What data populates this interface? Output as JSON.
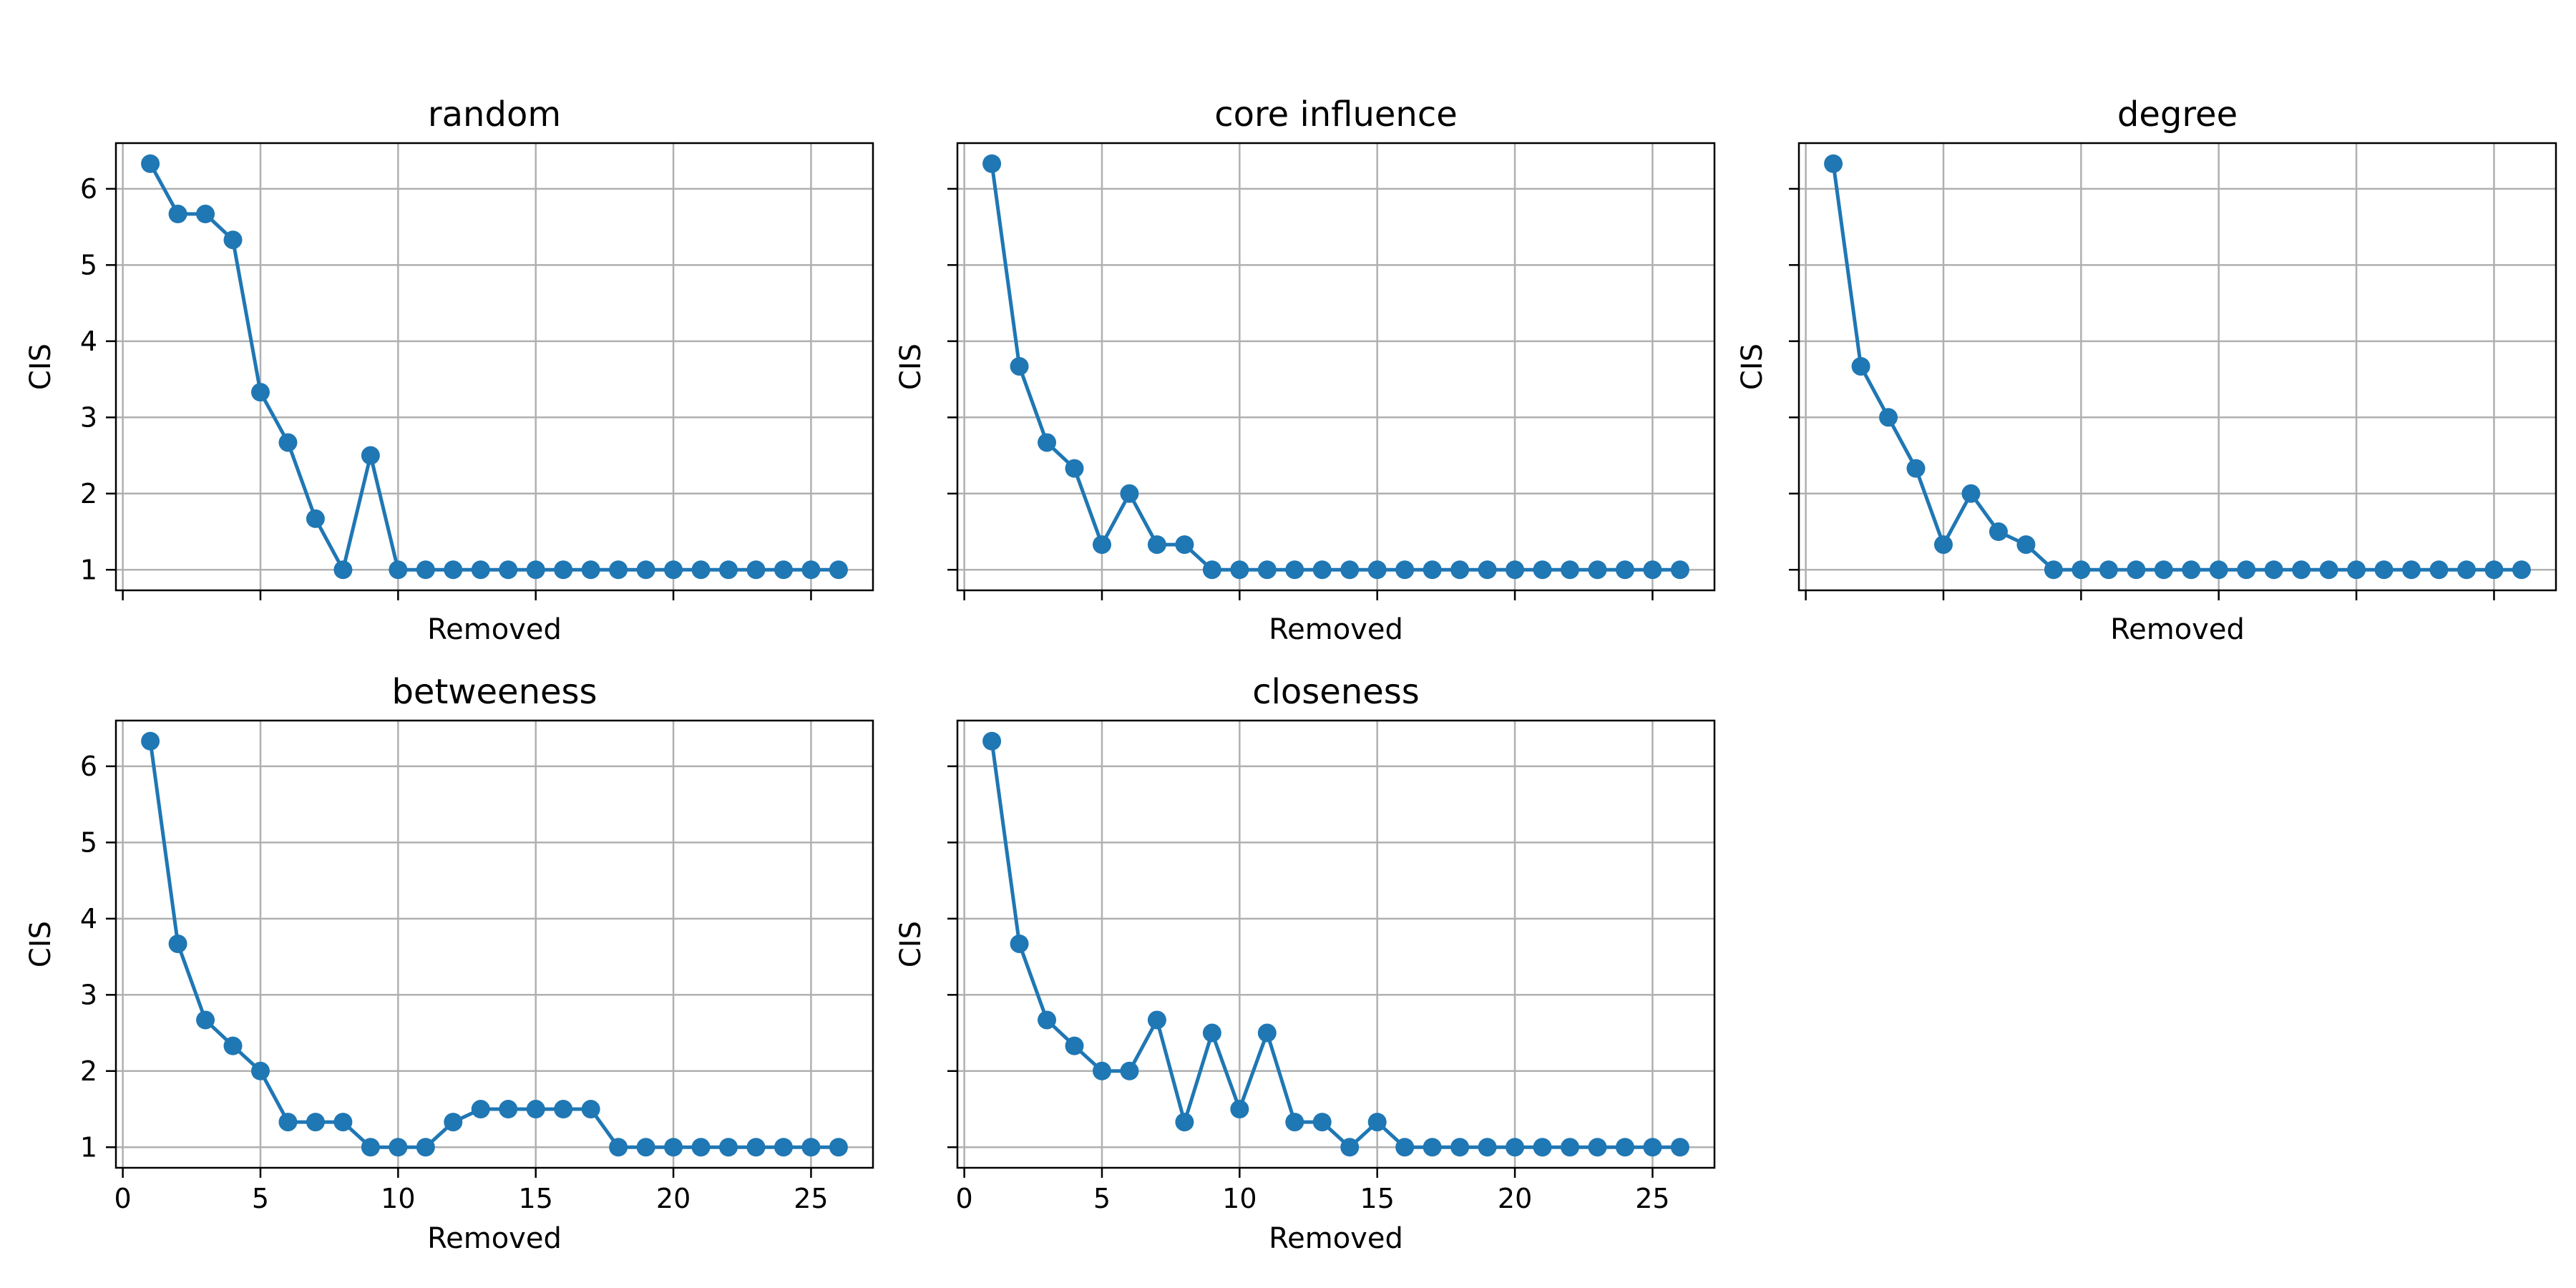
{
  "chart_data": [
    {
      "type": "line",
      "title": "random",
      "xlabel": "Removed",
      "ylabel": "CIS",
      "x": [
        1,
        2,
        3,
        4,
        5,
        6,
        7,
        8,
        9,
        10,
        11,
        12,
        13,
        14,
        15,
        16,
        17,
        18,
        19,
        20,
        21,
        22,
        23,
        24,
        25,
        26
      ],
      "y": [
        6.33,
        5.67,
        5.67,
        5.33,
        3.33,
        2.67,
        1.67,
        1.0,
        2.5,
        1.0,
        1.0,
        1.0,
        1.0,
        1.0,
        1.0,
        1.0,
        1.0,
        1.0,
        1.0,
        1.0,
        1.0,
        1.0,
        1.0,
        1.0,
        1.0,
        1.0
      ],
      "xlim": [
        -0.25,
        27.25
      ],
      "ylim": [
        0.73,
        6.6
      ],
      "xticks": [
        0,
        5,
        10,
        15,
        20,
        25
      ],
      "yticks": [
        1,
        2,
        3,
        4,
        5,
        6
      ],
      "show_xticklabels": false,
      "show_yticklabels": true,
      "grid": true,
      "color": "#1f77b4"
    },
    {
      "type": "line",
      "title": "core influence",
      "xlabel": "Removed",
      "ylabel": "CIS",
      "x": [
        1,
        2,
        3,
        4,
        5,
        6,
        7,
        8,
        9,
        10,
        11,
        12,
        13,
        14,
        15,
        16,
        17,
        18,
        19,
        20,
        21,
        22,
        23,
        24,
        25,
        26
      ],
      "y": [
        6.33,
        3.67,
        2.67,
        2.33,
        1.33,
        2.0,
        1.33,
        1.33,
        1.0,
        1.0,
        1.0,
        1.0,
        1.0,
        1.0,
        1.0,
        1.0,
        1.0,
        1.0,
        1.0,
        1.0,
        1.0,
        1.0,
        1.0,
        1.0,
        1.0,
        1.0
      ],
      "xlim": [
        -0.25,
        27.25
      ],
      "ylim": [
        0.73,
        6.6
      ],
      "xticks": [
        0,
        5,
        10,
        15,
        20,
        25
      ],
      "yticks": [
        1,
        2,
        3,
        4,
        5,
        6
      ],
      "show_xticklabels": false,
      "show_yticklabels": false,
      "grid": true,
      "color": "#1f77b4"
    },
    {
      "type": "line",
      "title": "degree",
      "xlabel": "Removed",
      "ylabel": "CIS",
      "x": [
        1,
        2,
        3,
        4,
        5,
        6,
        7,
        8,
        9,
        10,
        11,
        12,
        13,
        14,
        15,
        16,
        17,
        18,
        19,
        20,
        21,
        22,
        23,
        24,
        25,
        26
      ],
      "y": [
        6.33,
        3.67,
        3.0,
        2.33,
        1.33,
        2.0,
        1.5,
        1.33,
        1.0,
        1.0,
        1.0,
        1.0,
        1.0,
        1.0,
        1.0,
        1.0,
        1.0,
        1.0,
        1.0,
        1.0,
        1.0,
        1.0,
        1.0,
        1.0,
        1.0,
        1.0
      ],
      "xlim": [
        -0.25,
        27.25
      ],
      "ylim": [
        0.73,
        6.6
      ],
      "xticks": [
        0,
        5,
        10,
        15,
        20,
        25
      ],
      "yticks": [
        1,
        2,
        3,
        4,
        5,
        6
      ],
      "show_xticklabels": false,
      "show_yticklabels": false,
      "grid": true,
      "color": "#1f77b4"
    },
    {
      "type": "line",
      "title": "betweeness",
      "xlabel": "Removed",
      "ylabel": "CIS",
      "x": [
        1,
        2,
        3,
        4,
        5,
        6,
        7,
        8,
        9,
        10,
        11,
        12,
        13,
        14,
        15,
        16,
        17,
        18,
        19,
        20,
        21,
        22,
        23,
        24,
        25,
        26
      ],
      "y": [
        6.33,
        3.67,
        2.67,
        2.33,
        2.0,
        1.33,
        1.33,
        1.33,
        1.0,
        1.0,
        1.0,
        1.33,
        1.5,
        1.5,
        1.5,
        1.5,
        1.5,
        1.0,
        1.0,
        1.0,
        1.0,
        1.0,
        1.0,
        1.0,
        1.0,
        1.0
      ],
      "xlim": [
        -0.25,
        27.25
      ],
      "ylim": [
        0.73,
        6.6
      ],
      "xticks": [
        0,
        5,
        10,
        15,
        20,
        25
      ],
      "yticks": [
        1,
        2,
        3,
        4,
        5,
        6
      ],
      "show_xticklabels": true,
      "show_yticklabels": true,
      "grid": true,
      "color": "#1f77b4"
    },
    {
      "type": "line",
      "title": "closeness",
      "xlabel": "Removed",
      "ylabel": "CIS",
      "x": [
        1,
        2,
        3,
        4,
        5,
        6,
        7,
        8,
        9,
        10,
        11,
        12,
        13,
        14,
        15,
        16,
        17,
        18,
        19,
        20,
        21,
        22,
        23,
        24,
        25,
        26
      ],
      "y": [
        6.33,
        3.67,
        2.67,
        2.33,
        2.0,
        2.0,
        2.67,
        1.33,
        2.5,
        1.5,
        2.5,
        1.33,
        1.33,
        1.0,
        1.33,
        1.0,
        1.0,
        1.0,
        1.0,
        1.0,
        1.0,
        1.0,
        1.0,
        1.0,
        1.0,
        1.0
      ],
      "xlim": [
        -0.25,
        27.25
      ],
      "ylim": [
        0.73,
        6.6
      ],
      "xticks": [
        0,
        5,
        10,
        15,
        20,
        25
      ],
      "yticks": [
        1,
        2,
        3,
        4,
        5,
        6
      ],
      "show_xticklabels": true,
      "show_yticklabels": false,
      "grid": true,
      "color": "#1f77b4"
    }
  ]
}
